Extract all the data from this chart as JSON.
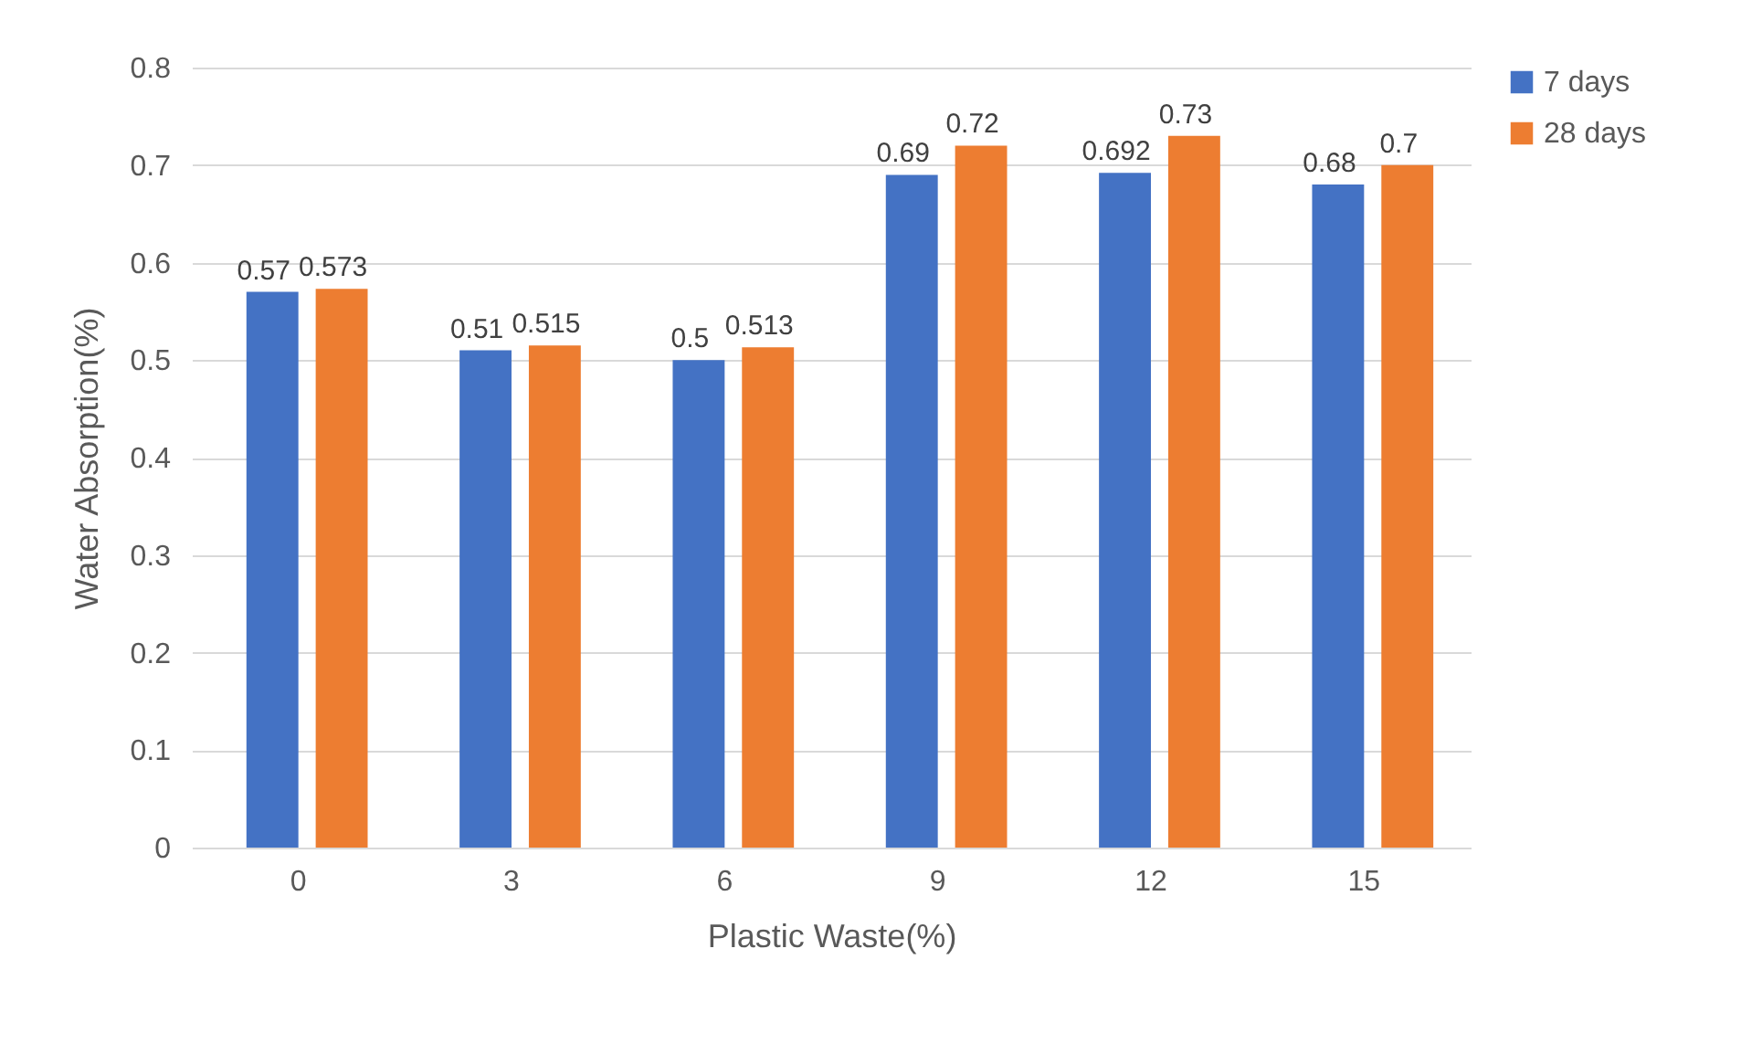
{
  "chart_data": {
    "type": "bar",
    "xlabel": "Plastic Waste(%)",
    "ylabel": "Water Absorption(%)",
    "categories": [
      "0",
      "3",
      "6",
      "9",
      "12",
      "15"
    ],
    "series": [
      {
        "name": "7 days",
        "color": "#4472c4",
        "values": [
          0.57,
          0.51,
          0.5,
          0.69,
          0.692,
          0.68
        ]
      },
      {
        "name": "28 days",
        "color": "#ed7d31",
        "values": [
          0.573,
          0.515,
          0.513,
          0.72,
          0.73,
          0.7
        ]
      }
    ],
    "ylim": [
      0,
      0.8
    ],
    "yticks": [
      {
        "value": 0,
        "label": "0"
      },
      0.1,
      0.2,
      0.3,
      0.4,
      0.5,
      0.6,
      0.7,
      0.8
    ],
    "grid": "y",
    "legend": "right",
    "data_labels": true
  }
}
